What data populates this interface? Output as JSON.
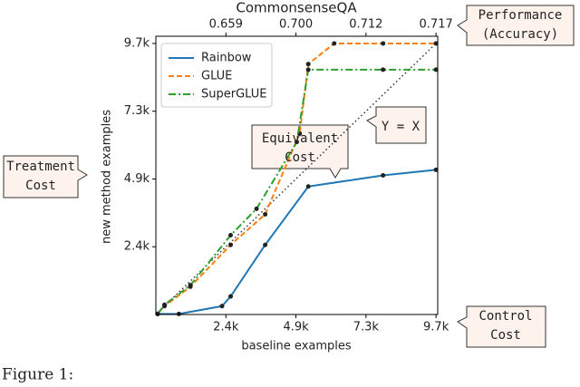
{
  "chart_data": {
    "type": "line",
    "xlabel": "baseline examples",
    "ylabel": "new method examples",
    "top_axis": {
      "label": "CommonsenseQA",
      "ticks": [
        0.659,
        {
          "value": 0.7,
          "label": "0.700"
        },
        0.712,
        0.717
      ]
    },
    "xlim": [
      0,
      9800
    ],
    "ylim": [
      0,
      10000
    ],
    "xticks": [
      {
        "value": 2435,
        "label": "2.4k"
      },
      {
        "value": 4870,
        "label": "4.9k"
      },
      {
        "value": 7306,
        "label": "7.3k"
      },
      {
        "value": 9741,
        "label": "9.7k"
      }
    ],
    "yticks": [
      {
        "value": 2435,
        "label": "2.4k"
      },
      {
        "value": 4870,
        "label": "4.9k"
      },
      {
        "value": 7306,
        "label": "7.3k"
      },
      {
        "value": 9741,
        "label": "9.7k"
      }
    ],
    "legend": "upper left",
    "series": [
      {
        "name": "Rainbow",
        "color": "#1f77b4",
        "style": "solid",
        "x": [
          60,
          800,
          2300,
          2600,
          3800,
          5300,
          7900,
          9741
        ],
        "values": [
          20,
          20,
          300,
          650,
          2500,
          4600,
          5000,
          5200
        ]
      },
      {
        "name": "GLUE",
        "color": "#ff7f0e",
        "style": "dashed",
        "x": [
          60,
          300,
          1200,
          2600,
          3800,
          5000,
          5300,
          6200,
          7900,
          9741
        ],
        "values": [
          20,
          300,
          1000,
          2500,
          3600,
          6500,
          9000,
          9741,
          9741,
          9741
        ]
      },
      {
        "name": "SuperGLUE",
        "color": "#2ca02c",
        "style": "dashdot",
        "x": [
          60,
          300,
          1200,
          2600,
          3500,
          4900,
          5300,
          7900,
          9741
        ],
        "values": [
          20,
          350,
          1050,
          2850,
          3800,
          6200,
          8800,
          8800,
          8800
        ]
      }
    ],
    "annotations": [
      {
        "lines": [
          "Performance",
          "(Accuracy)"
        ]
      },
      {
        "lines": [
          "Treatment",
          "Cost"
        ]
      },
      {
        "lines": [
          "Equivalent",
          "Cost"
        ]
      },
      {
        "lines": [
          "Y = X"
        ]
      },
      {
        "lines": [
          "Control",
          "Cost"
        ]
      }
    ],
    "caption": "Figure 1:"
  }
}
